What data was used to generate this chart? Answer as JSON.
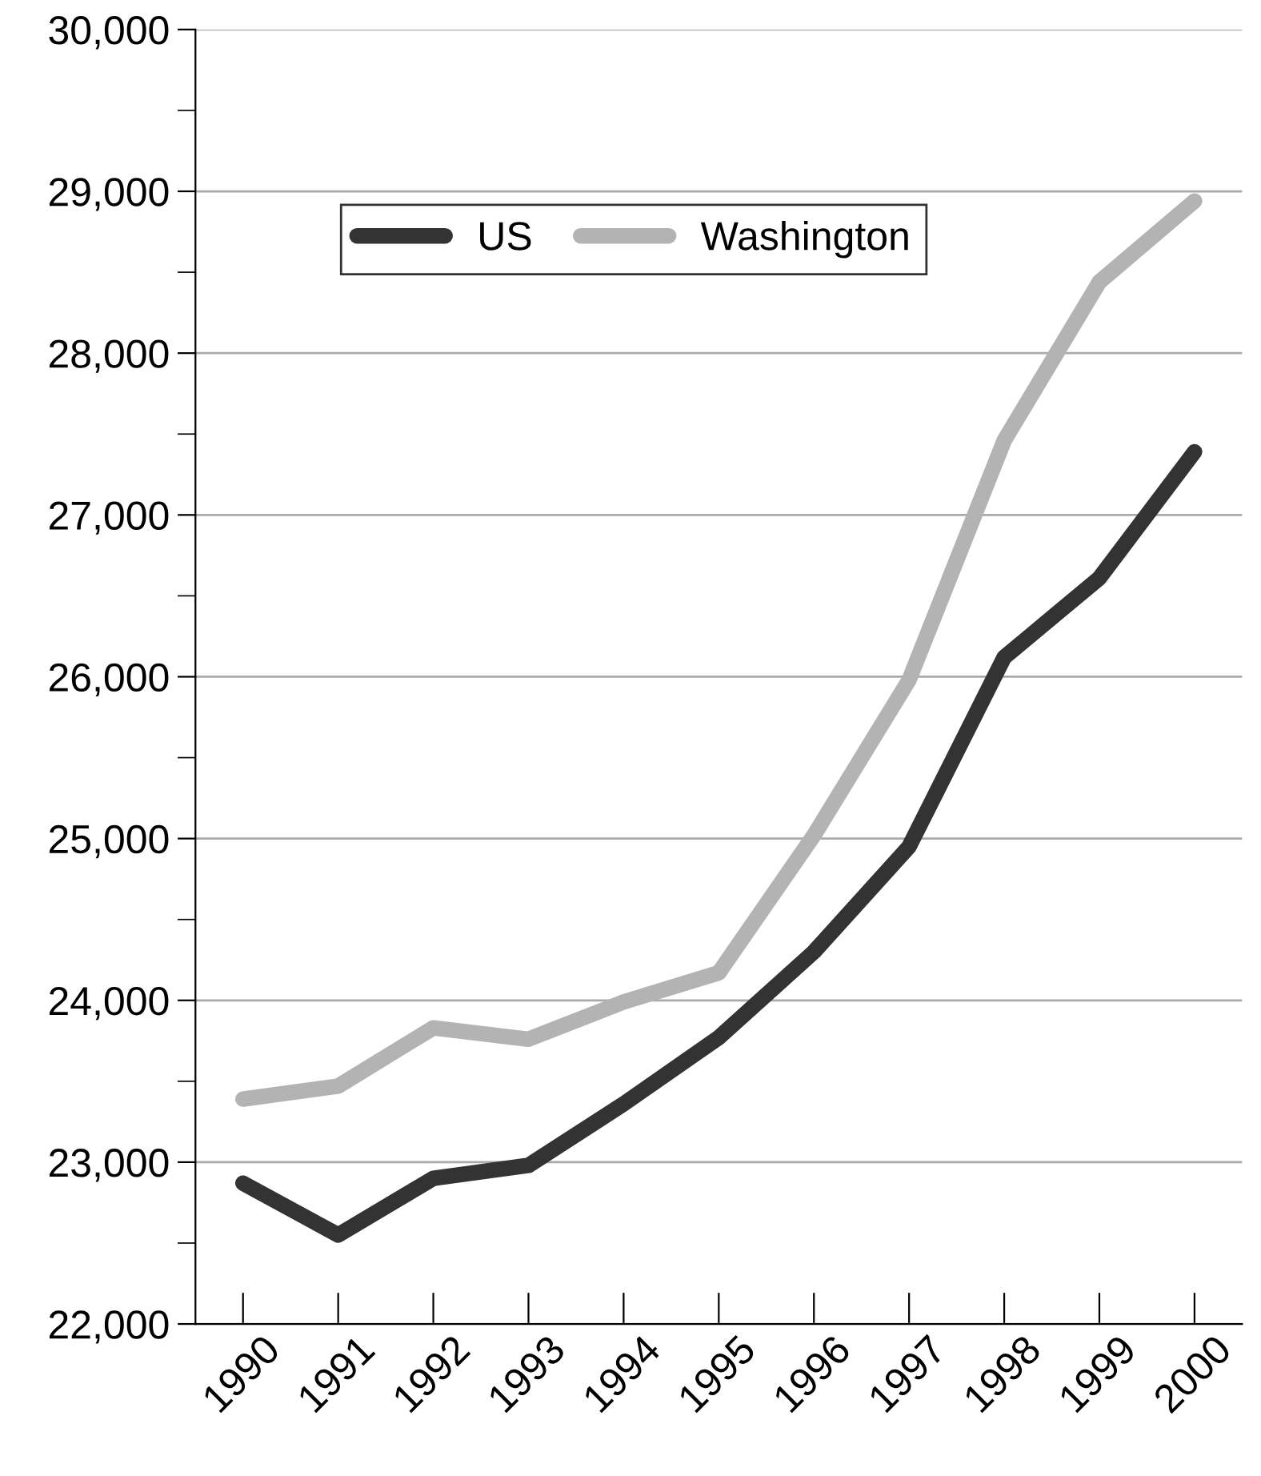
{
  "chart_data": {
    "type": "line",
    "categories": [
      "1990",
      "1991",
      "1992",
      "1993",
      "1994",
      "1995",
      "1996",
      "1997",
      "1998",
      "1999",
      "2000"
    ],
    "series": [
      {
        "name": "US",
        "color": "#333333",
        "values": [
          22870,
          22550,
          22900,
          22980,
          23360,
          23770,
          24300,
          24950,
          26120,
          26610,
          27390
        ]
      },
      {
        "name": "Washington",
        "color": "#b3b3b3",
        "values": [
          23390,
          23470,
          23830,
          23760,
          23990,
          24170,
          25020,
          25980,
          27460,
          28440,
          28940
        ]
      }
    ],
    "ylim": [
      22000,
      30000
    ],
    "yticks": [
      {
        "value": 22000,
        "label": "22,000"
      },
      {
        "value": 22500,
        "label": null
      },
      {
        "value": 23000,
        "label": "23,000"
      },
      {
        "value": 23500,
        "label": null
      },
      {
        "value": 24000,
        "label": "24,000"
      },
      {
        "value": 24500,
        "label": null
      },
      {
        "value": 25000,
        "label": "25,000"
      },
      {
        "value": 25500,
        "label": null
      },
      {
        "value": 26000,
        "label": "26,000"
      },
      {
        "value": 26500,
        "label": null
      },
      {
        "value": 27000,
        "label": "27,000"
      },
      {
        "value": 27500,
        "label": null
      },
      {
        "value": 28000,
        "label": "28,000"
      },
      {
        "value": 28500,
        "label": null
      },
      {
        "value": 29000,
        "label": "29,000"
      },
      {
        "value": 29500,
        "label": null
      },
      {
        "value": 30000,
        "label": "30,000"
      }
    ],
    "grid": "y",
    "legend": "top left",
    "line_style": "solid",
    "marker": "none"
  }
}
